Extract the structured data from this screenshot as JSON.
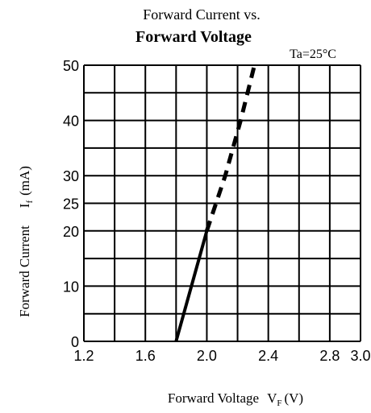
{
  "chart_data": {
    "type": "line",
    "title_line1": "Forward Current vs.",
    "title_line2": "Forward Voltage",
    "condition": "Ta=25°C",
    "xlabel_main": "Forward Voltage",
    "xlabel_symbol": "V",
    "xlabel_subscript": "F",
    "xlabel_unit": "(V)",
    "ylabel_main": "Forward Current",
    "ylabel_symbol": "I",
    "ylabel_subscript": "f",
    "ylabel_unit": "(mA)",
    "xlim": [
      1.2,
      3.0
    ],
    "ylim": [
      0,
      50
    ],
    "grid": true,
    "x_ticks": [
      {
        "value": 1.2,
        "label": "1.2"
      },
      {
        "value": 1.6,
        "label": "1.6"
      },
      {
        "value": 2.0,
        "label": "2.0"
      },
      {
        "value": 2.4,
        "label": "2.4"
      },
      {
        "value": 2.8,
        "label": "2.8"
      },
      {
        "value": 3.0,
        "label": "3.0"
      }
    ],
    "y_ticks": [
      {
        "value": 0,
        "label": "0"
      },
      {
        "value": 10,
        "label": "10"
      },
      {
        "value": 20,
        "label": "20"
      },
      {
        "value": 25,
        "label": "25"
      },
      {
        "value": 30,
        "label": "30"
      },
      {
        "value": 40,
        "label": "40"
      },
      {
        "value": 50,
        "label": "50"
      }
    ],
    "x_grid": [
      1.2,
      1.4,
      1.6,
      1.8,
      2.0,
      2.2,
      2.4,
      2.6,
      2.8,
      3.0
    ],
    "y_grid": [
      0,
      5,
      10,
      15,
      20,
      25,
      30,
      35,
      40,
      45,
      50
    ],
    "series": [
      {
        "color": "#000000",
        "points": [
          {
            "x": 1.8,
            "y": 0
          },
          {
            "x": 2.0,
            "y": 20
          },
          {
            "x": 2.12,
            "y": 30
          },
          {
            "x": 2.22,
            "y": 40
          },
          {
            "x": 2.31,
            "y": 50
          }
        ],
        "dashed_above": 20
      }
    ]
  }
}
